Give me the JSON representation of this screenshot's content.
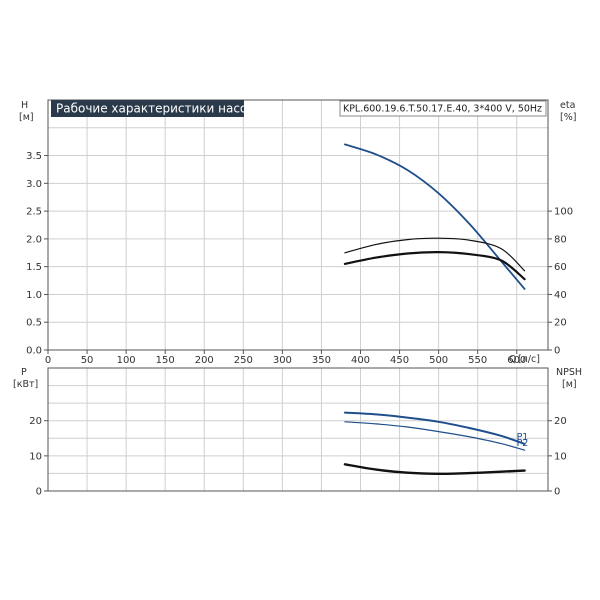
{
  "title": "Рабочие характеристики насоса",
  "model": "KPL.600.19.6.T.50.17.E.40, 3*400 V, 50Hz",
  "chart_data": [
    {
      "type": "line",
      "panel": "top",
      "xlabel": "Q",
      "xunit": "[л/с]",
      "xlim": [
        0,
        640
      ],
      "xticks": [
        0,
        50,
        100,
        150,
        200,
        250,
        300,
        350,
        400,
        450,
        500,
        550,
        600
      ],
      "left_axis": {
        "label": "H",
        "unit": "[м]",
        "ylim": [
          0,
          4.5
        ],
        "ticks": [
          "0.0",
          "0.5",
          "1.0",
          "1.5",
          "2.0",
          "2.5",
          "3.0",
          "3.5"
        ]
      },
      "right_axis": {
        "label": "eta",
        "unit": "[%]",
        "ylim": [
          0,
          180
        ],
        "ticks": [
          "0",
          "20",
          "40",
          "60",
          "80",
          "100"
        ]
      },
      "series": [
        {
          "axis": "left",
          "color": "#1f4e8c",
          "x": [
            380,
            420,
            460,
            500,
            540,
            580,
            610
          ],
          "y": [
            3.7,
            3.52,
            3.24,
            2.82,
            2.26,
            1.6,
            1.1
          ]
        },
        {
          "axis": "right",
          "color": "#111111",
          "x": [
            380,
            420,
            460,
            500,
            540,
            580,
            610
          ],
          "y": [
            70,
            76,
            79.5,
            80.5,
            79,
            73,
            57
          ]
        },
        {
          "axis": "right",
          "color": "#111111",
          "x": [
            380,
            420,
            460,
            500,
            540,
            580,
            610
          ],
          "y": [
            62,
            66.5,
            69.5,
            70.5,
            69,
            64.5,
            51
          ]
        }
      ]
    },
    {
      "type": "line",
      "panel": "bottom",
      "xlim": [
        0,
        640
      ],
      "left_axis": {
        "label": "P",
        "unit": "[кВт]",
        "ylim": [
          0,
          35
        ],
        "ticks": [
          "0",
          "10",
          "20"
        ]
      },
      "right_axis": {
        "label": "NPSH",
        "unit": "[м]",
        "ylim": [
          0,
          35
        ],
        "ticks": [
          "0",
          "10",
          "20"
        ]
      },
      "series": [
        {
          "name": "P1",
          "axis": "left",
          "color": "#1f4e8c",
          "x": [
            380,
            420,
            460,
            500,
            540,
            580,
            610
          ],
          "y": [
            22.3,
            21.8,
            20.9,
            19.7,
            17.9,
            15.7,
            13.4
          ]
        },
        {
          "name": "P2",
          "axis": "left",
          "color": "#1f4e8c",
          "x": [
            380,
            420,
            460,
            500,
            540,
            580,
            610
          ],
          "y": [
            19.7,
            19.1,
            18.2,
            16.9,
            15.4,
            13.5,
            11.6
          ]
        },
        {
          "axis": "right",
          "color": "#111111",
          "x": [
            380,
            420,
            460,
            500,
            540,
            580,
            610
          ],
          "y": [
            7.6,
            6.1,
            5.2,
            4.9,
            5.1,
            5.5,
            5.8
          ]
        }
      ]
    }
  ]
}
